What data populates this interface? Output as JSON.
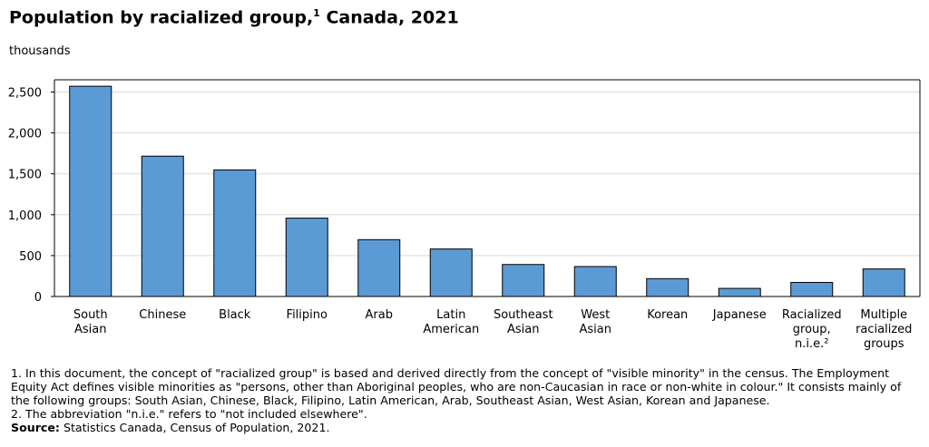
{
  "title": "Population by racialized group,",
  "title_sup": "1",
  "title_rest": " Canada, 2021",
  "unit": "thousands",
  "chart_data": {
    "type": "bar",
    "title": "Population by racialized group,1 Canada, 2021",
    "ylabel": "thousands",
    "xlabel": "",
    "ylim": [
      0,
      2650
    ],
    "yticks": [
      0,
      500,
      1000,
      1500,
      2000,
      2500
    ],
    "ytick_labels": [
      "0",
      "500",
      "1,000",
      "1,500",
      "2,000",
      "2,500"
    ],
    "grid": true,
    "bar_color": "#5b9bd5",
    "categories": [
      [
        "South",
        "Asian"
      ],
      [
        "Chinese"
      ],
      [
        "Black"
      ],
      [
        "Filipino"
      ],
      [
        "Arab"
      ],
      [
        "Latin",
        "American"
      ],
      [
        "Southeast",
        "Asian"
      ],
      [
        "West",
        "Asian"
      ],
      [
        "Korean"
      ],
      [
        "Japanese"
      ],
      [
        "Racialized",
        "group,",
        "n.i.e.²"
      ],
      [
        "Multiple",
        "racialized",
        "groups"
      ]
    ],
    "values": [
      2571,
      1716,
      1548,
      958,
      695,
      581,
      391,
      366,
      218,
      99,
      172,
      337
    ]
  },
  "notes": [
    "1. In this document, the concept of \"racialized group\" is based and derived directly from the concept of \"visible minority\" in the census. The Employment Equity Act defines visible minorities as \"persons, other than Aboriginal peoples, who are non-Caucasian in race or non-white in colour.\" It consists mainly of the following groups: South Asian, Chinese, Black, Filipino, Latin American, Arab, Southeast Asian, West Asian, Korean and Japanese.",
    "2. The abbreviation \"n.i.e.\" refers to \"not included elsewhere\"."
  ],
  "source_label": "Source:",
  "source_text": " Statistics Canada, Census of Population, 2021."
}
